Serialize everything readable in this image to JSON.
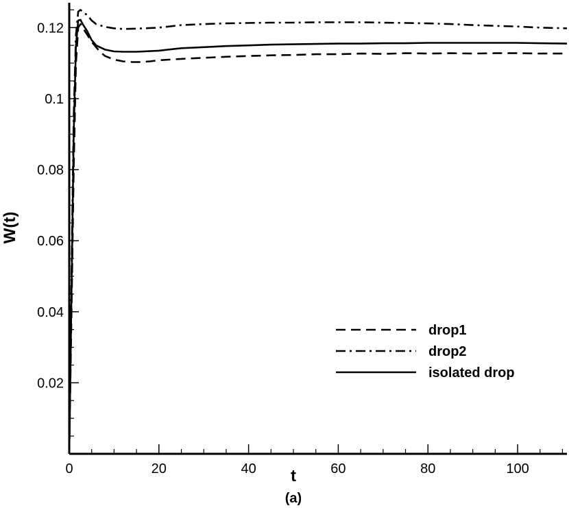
{
  "chart_data": {
    "type": "line",
    "xlabel": "t",
    "ylabel": "W(t)",
    "caption": "(a)",
    "xlim": [
      0,
      111
    ],
    "ylim": [
      0.0,
      0.127
    ],
    "x_ticks": [
      0,
      20,
      40,
      60,
      80,
      100
    ],
    "x_tick_labels": [
      "0",
      "20",
      "40",
      "60",
      "80",
      "100"
    ],
    "y_ticks": [
      0.02,
      0.04,
      0.06,
      0.08,
      0.1,
      0.12
    ],
    "y_tick_labels": [
      "0.02",
      "0.04",
      "0.06",
      "0.08",
      "0.1",
      "0.12"
    ],
    "grid": false,
    "legend_position": "bottom-right",
    "series": [
      {
        "name": "drop1",
        "style": "dashed",
        "color": "#000000",
        "x": [
          0,
          0.5,
          1,
          1.5,
          2,
          2.5,
          3,
          4,
          5,
          6,
          7,
          8,
          10,
          12,
          14,
          16,
          18,
          20,
          25,
          30,
          35,
          40,
          45,
          50,
          55,
          60,
          65,
          70,
          75,
          80,
          85,
          90,
          95,
          100,
          105,
          111
        ],
        "y": [
          0.0,
          0.04,
          0.08,
          0.11,
          0.12,
          0.121,
          0.12,
          0.118,
          0.116,
          0.1145,
          0.113,
          0.112,
          0.111,
          0.1105,
          0.1103,
          0.1103,
          0.1105,
          0.1108,
          0.1112,
          0.1115,
          0.1118,
          0.112,
          0.1122,
          0.1123,
          0.1125,
          0.1125,
          0.1127,
          0.1126,
          0.1128,
          0.1127,
          0.1128,
          0.1127,
          0.1128,
          0.1128,
          0.1127,
          0.1127
        ]
      },
      {
        "name": "drop2",
        "style": "dashdot",
        "color": "#000000",
        "x": [
          0,
          0.5,
          1,
          1.5,
          2,
          2.5,
          3,
          4,
          5,
          6,
          8,
          10,
          12,
          15,
          20,
          25,
          30,
          35,
          40,
          45,
          50,
          55,
          60,
          65,
          70,
          75,
          80,
          85,
          90,
          95,
          100,
          105,
          111
        ],
        "y": [
          0.0,
          0.05,
          0.095,
          0.118,
          0.1245,
          0.125,
          0.1245,
          0.1235,
          0.122,
          0.121,
          0.1202,
          0.1198,
          0.1196,
          0.1197,
          0.12,
          0.1207,
          0.121,
          0.1212,
          0.1213,
          0.1214,
          0.1214,
          0.1215,
          0.1215,
          0.1215,
          0.1214,
          0.1213,
          0.1212,
          0.121,
          0.1207,
          0.1205,
          0.1203,
          0.12,
          0.1198
        ]
      },
      {
        "name": "isolated drop",
        "style": "solid",
        "color": "#000000",
        "x": [
          0,
          0.5,
          1,
          1.5,
          2,
          2.5,
          3,
          4,
          5,
          6,
          8,
          10,
          12,
          15,
          20,
          25,
          30,
          35,
          40,
          45,
          50,
          55,
          60,
          65,
          70,
          75,
          80,
          85,
          90,
          95,
          100,
          105,
          111
        ],
        "y": [
          0.0,
          0.045,
          0.09,
          0.115,
          0.122,
          0.1222,
          0.121,
          0.119,
          0.1165,
          0.115,
          0.1138,
          0.1133,
          0.1132,
          0.1132,
          0.1135,
          0.1142,
          0.1145,
          0.1148,
          0.115,
          0.1152,
          0.1153,
          0.1154,
          0.1155,
          0.1155,
          0.1156,
          0.1156,
          0.1157,
          0.1157,
          0.1157,
          0.1157,
          0.1157,
          0.1156,
          0.1155
        ]
      }
    ]
  }
}
